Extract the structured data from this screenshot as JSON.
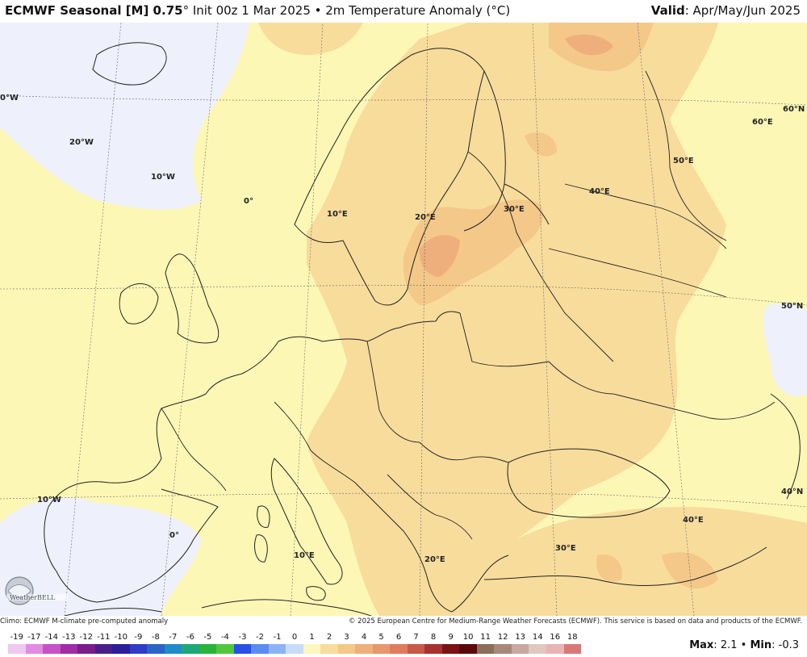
{
  "header": {
    "title_bold": "ECMWF Seasonal [M] 0.75",
    "title_rest": "° Init 00z 1 Mar 2025 • 2m Temperature Anomaly (°C)",
    "valid_label": "Valid",
    "valid_value": ": Apr/May/Jun 2025"
  },
  "map": {
    "projection": "conic",
    "graticule_labels": [
      "0°W",
      "20°W",
      "10°W",
      "0°",
      "10°E",
      "20°E",
      "30°E",
      "40°E",
      "50°E",
      "60°E",
      "60°N",
      "50°N",
      "40°N",
      "10°W",
      "0°",
      "10°E",
      "20°E",
      "30°E",
      "40°E"
    ],
    "colors": {
      "ocean_cool": "#eef1fb",
      "anomaly_0_1": "#fdf7b6",
      "anomaly_1_2": "#f8dc9c",
      "anomaly_2_3": "#f3c889",
      "anomaly_3_4": "#eeaf7c",
      "border": "#222222"
    }
  },
  "logo": {
    "name": "WeatherBELL"
  },
  "footer": {
    "climo_note": "Climo: ECMWF M-climate pre-computed anomaly",
    "copyright": "© 2025 European Centre for Medium-Range Weather Forecasts (ECMWF). This service is based on data and products of the ECMWF."
  },
  "colorbar": {
    "ticks": [
      "-19",
      "-17",
      "-14",
      "-13",
      "-12",
      "-11",
      "-10",
      "-9",
      "-8",
      "-7",
      "-6",
      "-5",
      "-4",
      "-3",
      "-2",
      "-1",
      "0",
      "1",
      "2",
      "3",
      "4",
      "5",
      "6",
      "7",
      "8",
      "9",
      "10",
      "11",
      "12",
      "13",
      "14",
      "16",
      "18"
    ],
    "swatches": [
      "#f0c8f0",
      "#e08ce0",
      "#c850c8",
      "#a02ca8",
      "#7a1c8c",
      "#4b1e8c",
      "#2c1e9c",
      "#2e3cc8",
      "#2a64c8",
      "#1e8cc8",
      "#1ea878",
      "#28b43c",
      "#50c83c",
      "#2850e6",
      "#5a8cf0",
      "#8cb4f5",
      "#c8dcfa",
      "#fff6c0",
      "#f8dc9c",
      "#f3c889",
      "#eeaf7c",
      "#e8966e",
      "#df7c5e",
      "#c85a46",
      "#a8322e",
      "#7a1414",
      "#5a0a0a",
      "#8c6e5a",
      "#a8887a",
      "#c8a8a0",
      "#e0c8c0",
      "#e8b4b4",
      "#d87878"
    ]
  },
  "stats": {
    "max_label": "Max",
    "max_value": "2.1",
    "separator": "•",
    "min_label": "Min",
    "min_value": "-0.3"
  }
}
